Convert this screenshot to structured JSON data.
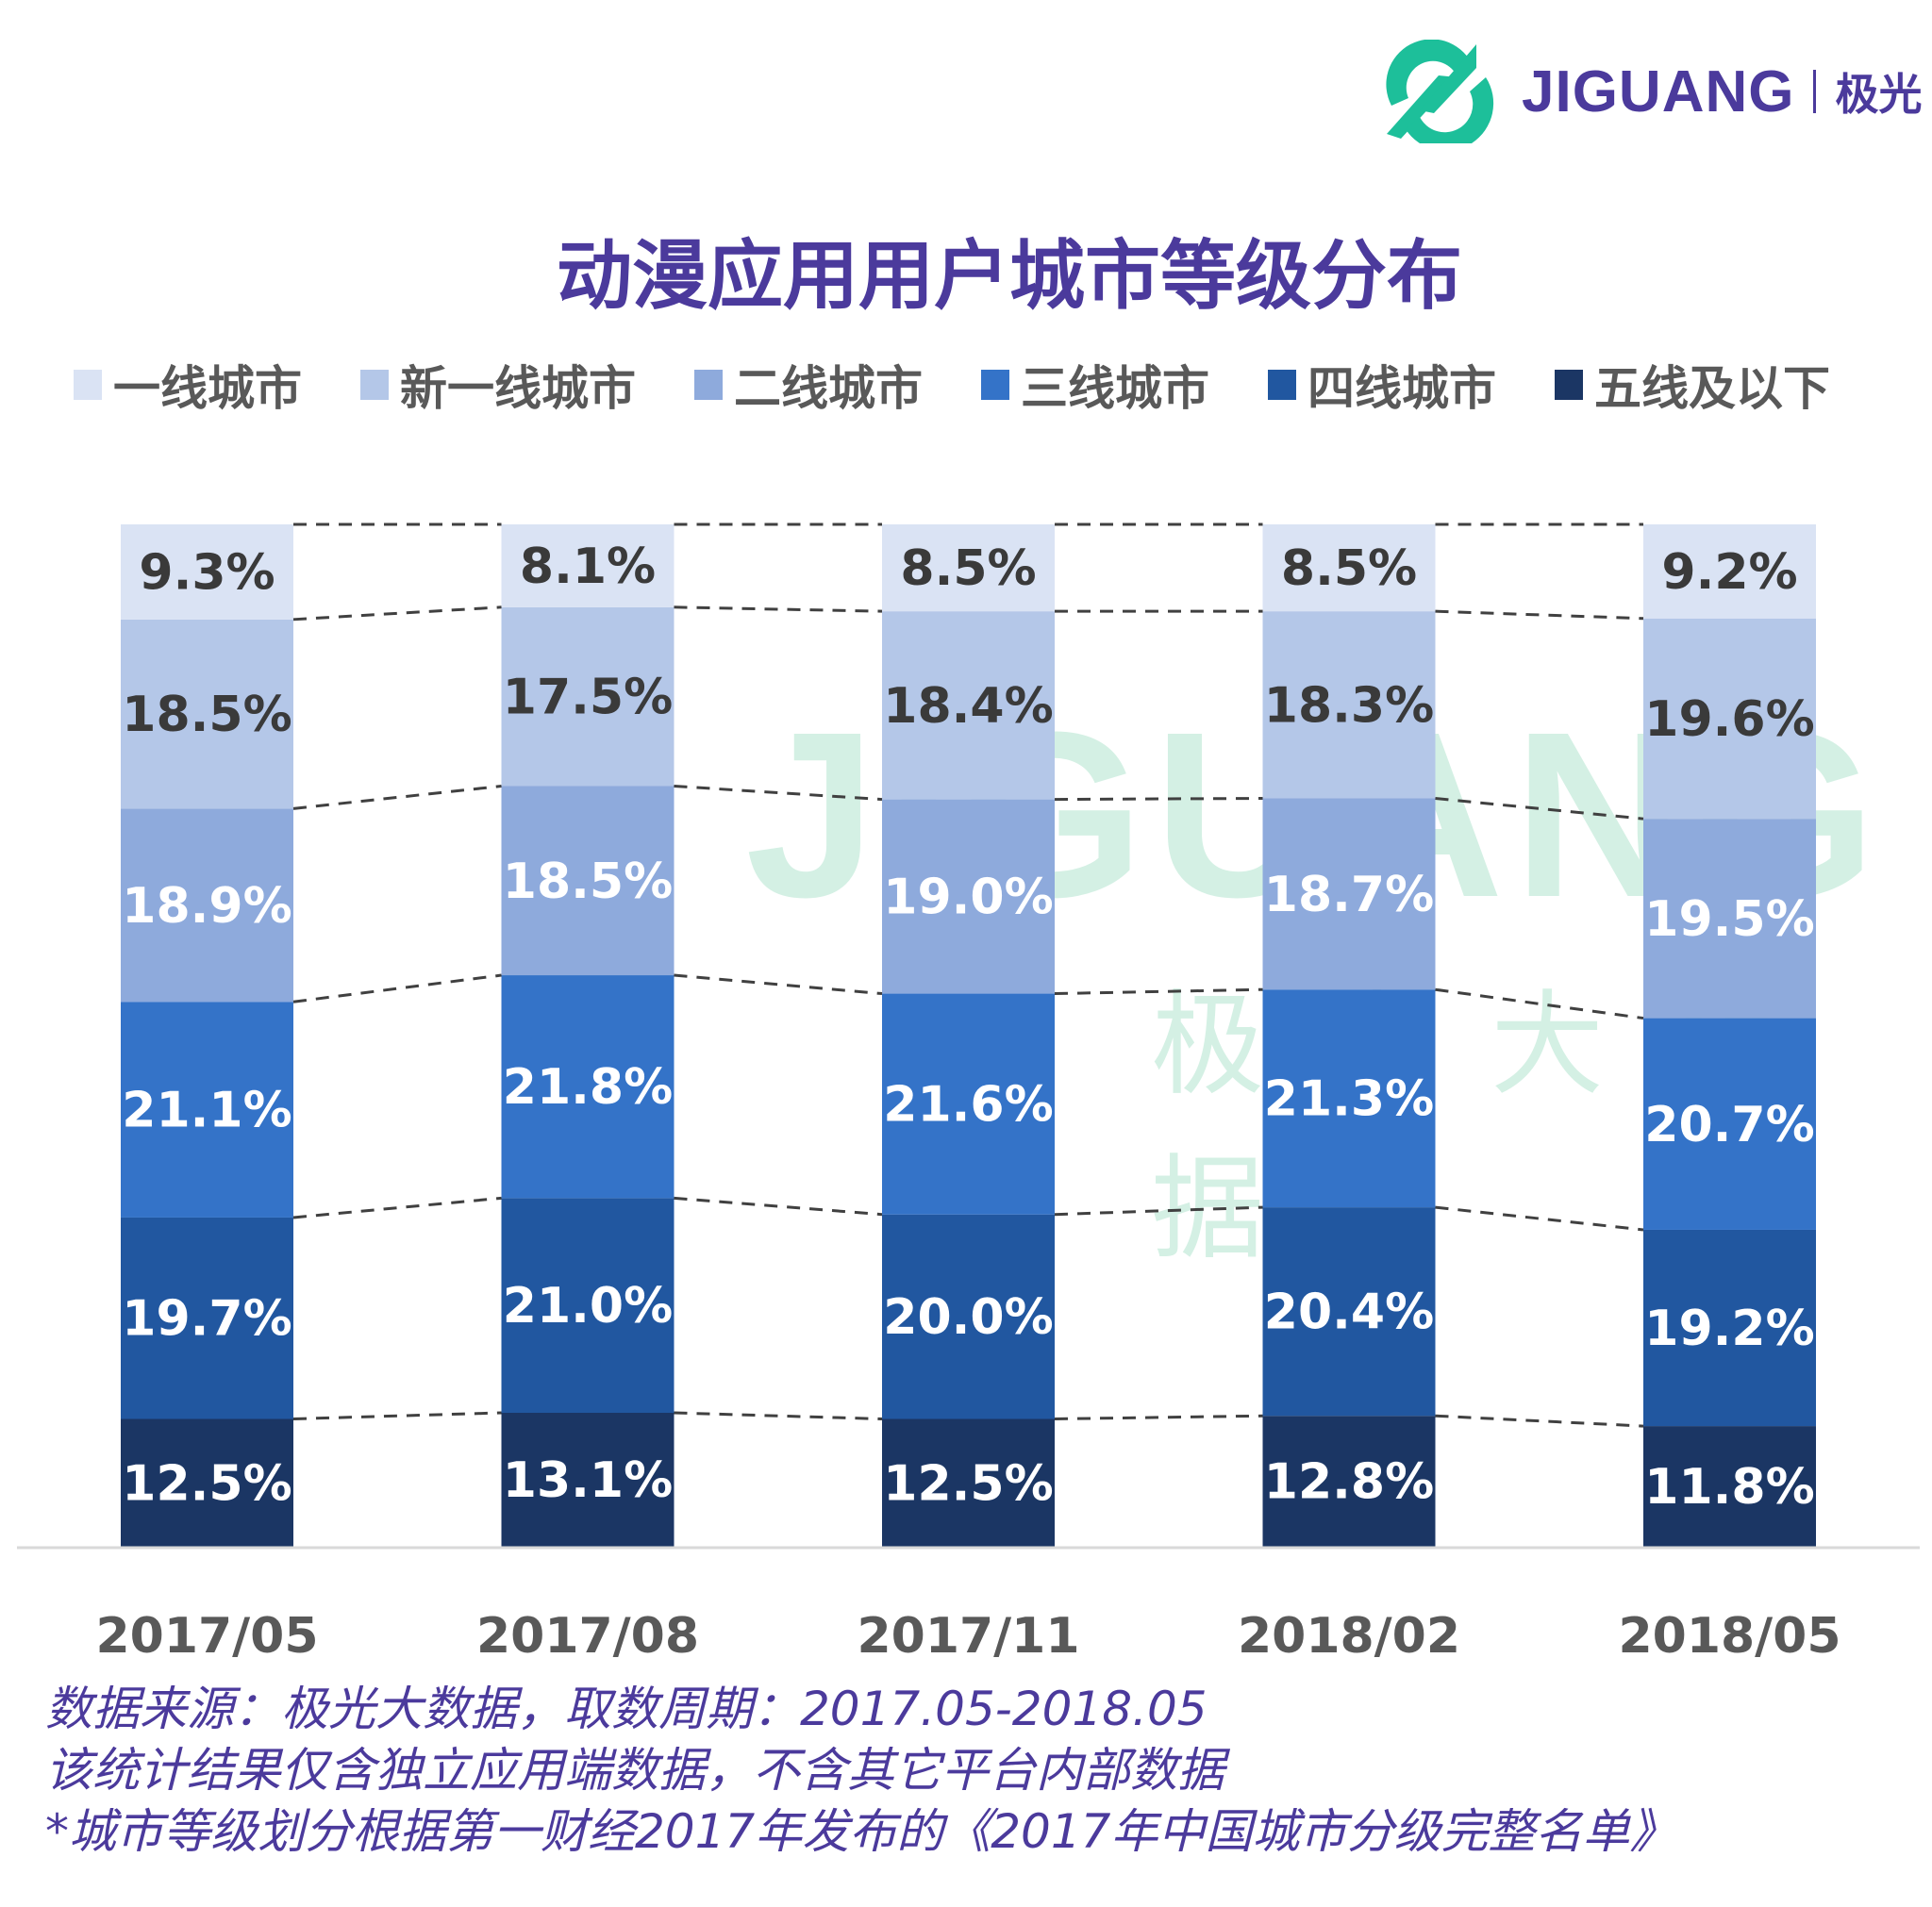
{
  "logo": {
    "text": "JIGUANG",
    "text_cn": "极光",
    "icon": "jiguang-logo-icon",
    "colors": {
      "icon": "#1dbf9a",
      "text": "#4b3a9c"
    }
  },
  "watermark": {
    "text": "JIGUANG",
    "text_cn": "极光大数据"
  },
  "chart_data": {
    "type": "bar",
    "stacked": true,
    "title": "动漫应用用户城市等级分布",
    "categories": [
      "2017/05",
      "2017/08",
      "2017/11",
      "2018/02",
      "2018/05"
    ],
    "series": [
      {
        "name": "五线及以下",
        "color": "#1b3664",
        "values": [
          12.5,
          13.1,
          12.5,
          12.8,
          11.8
        ]
      },
      {
        "name": "四线城市",
        "color": "#2157a0",
        "values": [
          19.7,
          21.0,
          20.0,
          20.4,
          19.2
        ]
      },
      {
        "name": "三线城市",
        "color": "#3473c8",
        "values": [
          21.1,
          21.8,
          21.6,
          21.3,
          20.7
        ]
      },
      {
        "name": "二线城市",
        "color": "#8eaadc",
        "values": [
          18.9,
          18.5,
          19.0,
          18.7,
          19.5
        ]
      },
      {
        "name": "新一线城市",
        "color": "#b4c7e8",
        "values": [
          18.5,
          17.5,
          18.4,
          18.3,
          19.6
        ]
      },
      {
        "name": "一线城市",
        "color": "#dae3f4",
        "values": [
          9.3,
          8.1,
          8.5,
          8.5,
          9.2
        ]
      }
    ],
    "legend_order": [
      "一线城市",
      "新一线城市",
      "二线城市",
      "三线城市",
      "四线城市",
      "五线及以下"
    ],
    "value_suffix": "%",
    "ylim": [
      0,
      100
    ],
    "legend_position": "top",
    "grid": false,
    "connector_lines": "dashed"
  },
  "notes": [
    "数据来源：极光大数据，取数周期：2017.05-2018.05",
    "该统计结果仅含独立应用端数据，不含其它平台内部数据",
    "*城市等级划分根据第一财经2017年发布的《2017年中国城市分级完整名单》"
  ]
}
